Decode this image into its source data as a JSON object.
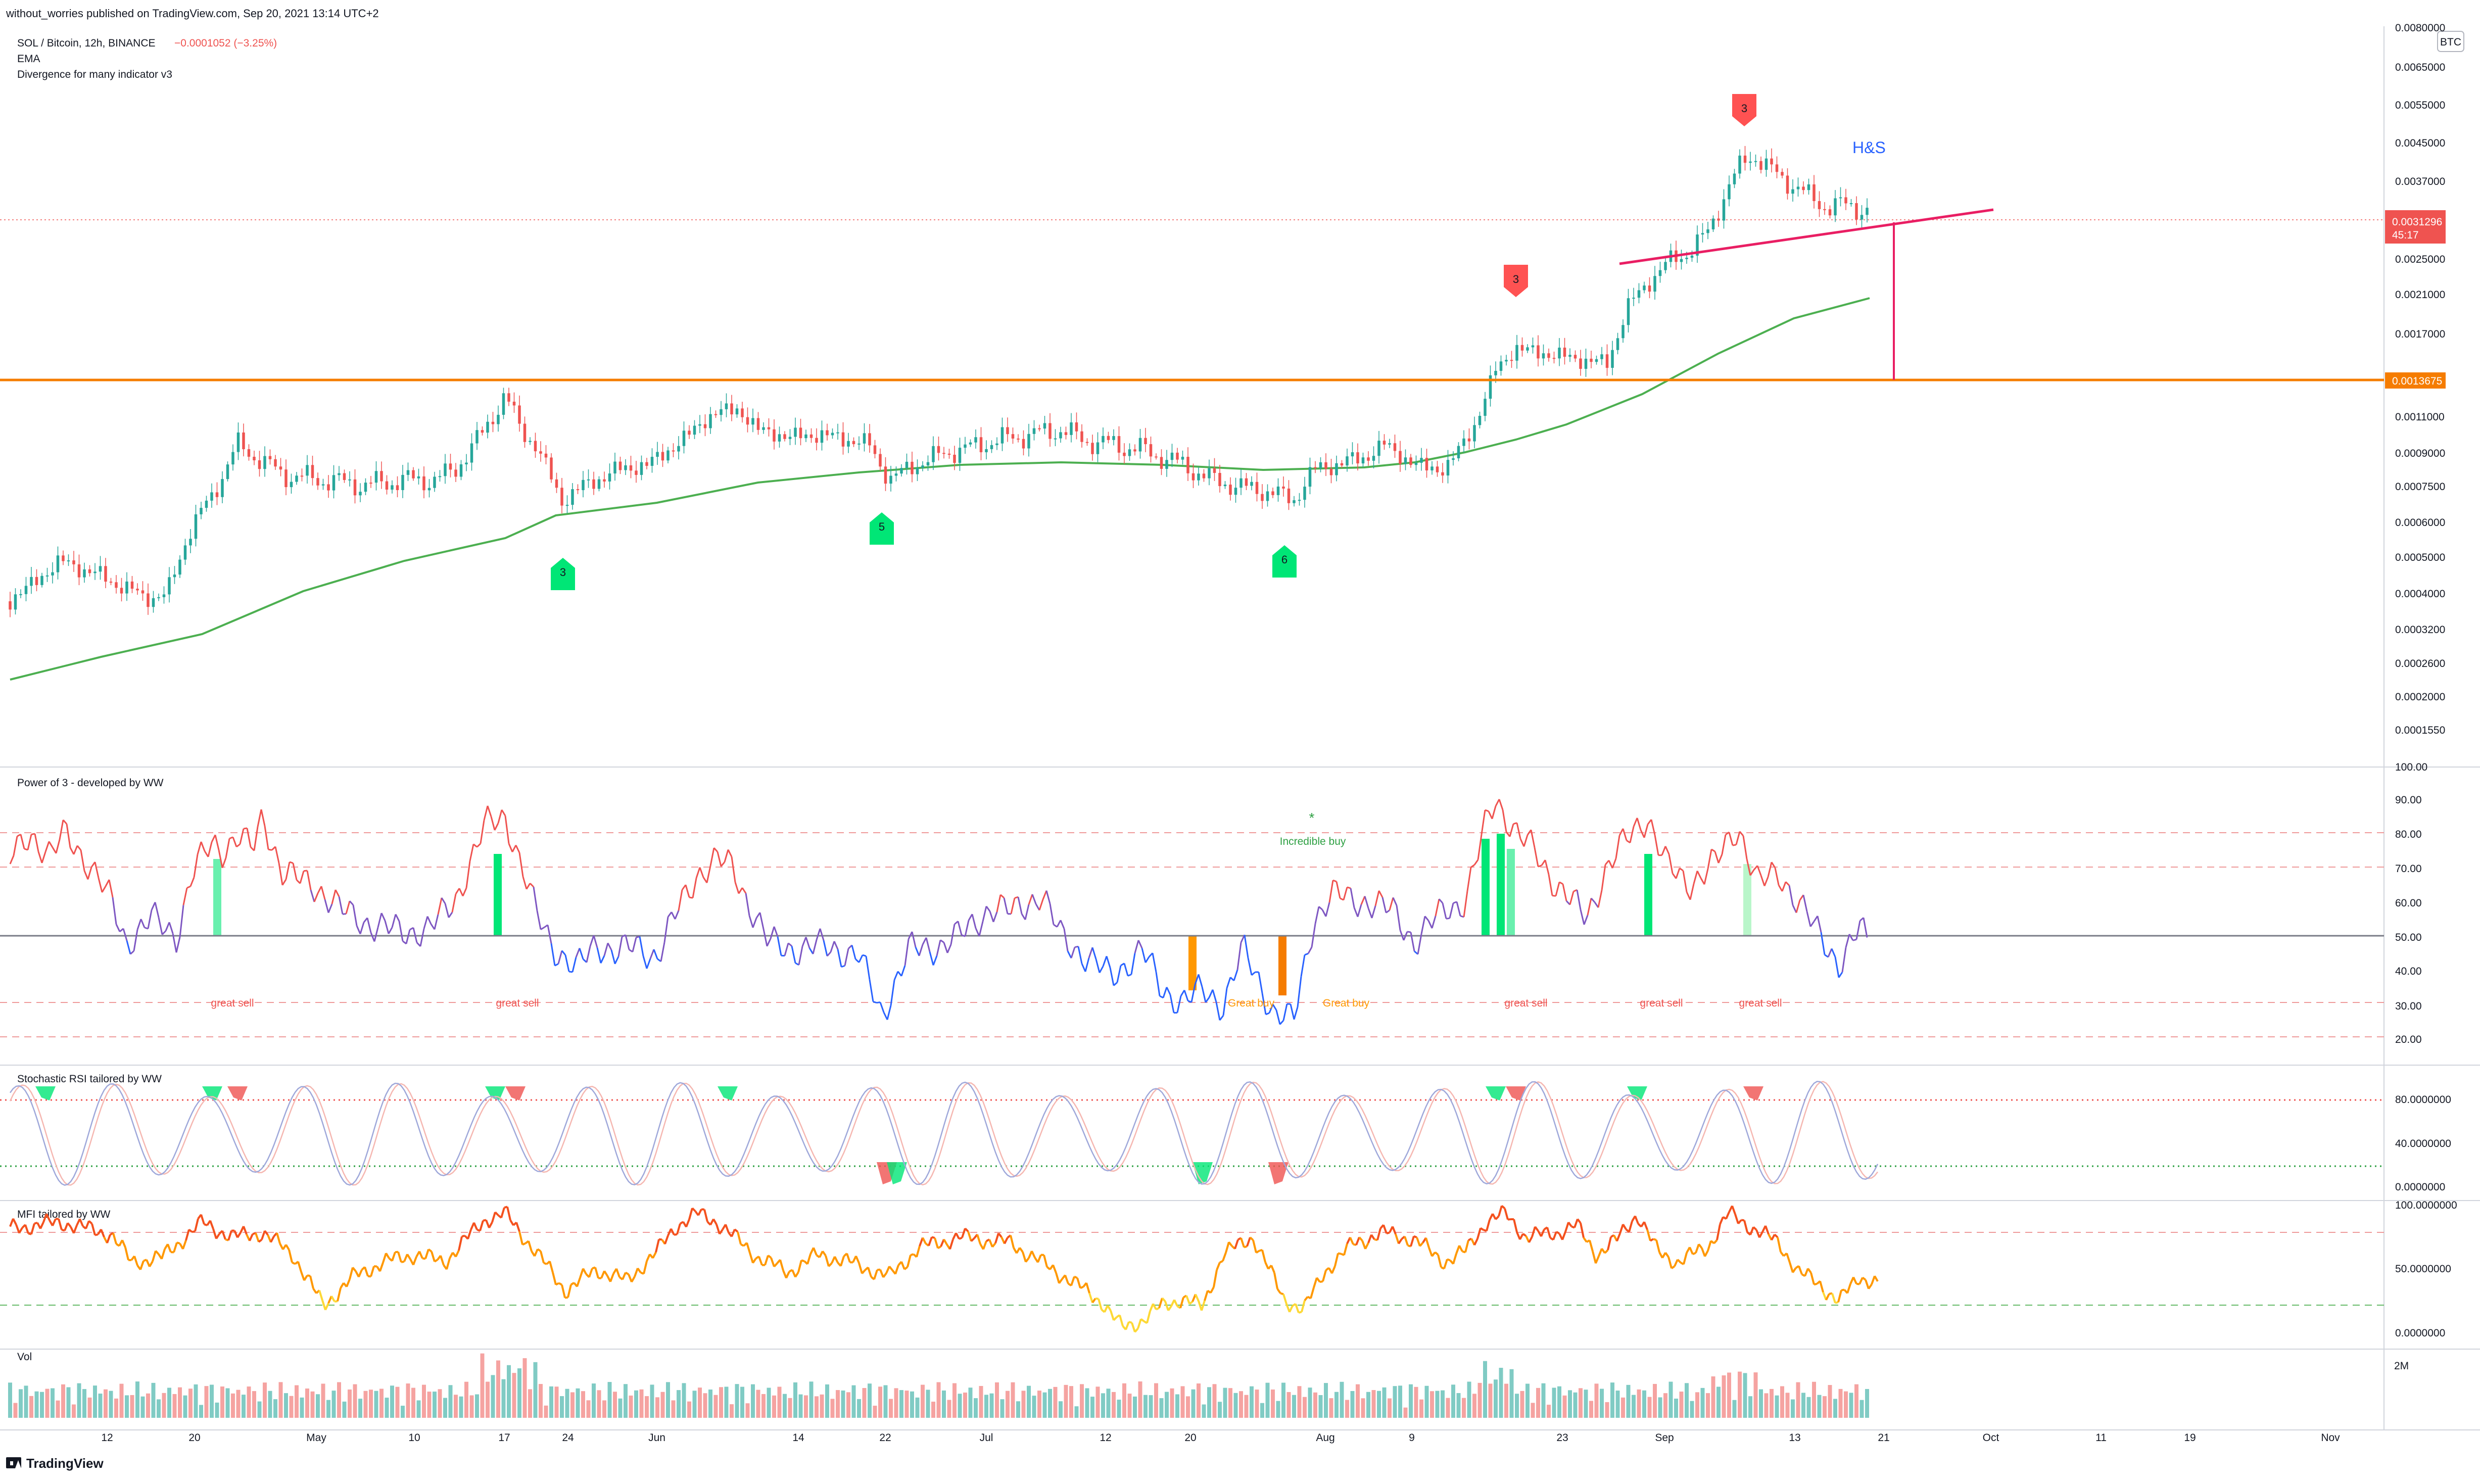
{
  "header": {
    "publisher": "without_worries published on TradingView.com, Sep 20, 2021 13:14 UTC+2"
  },
  "legend": {
    "symbol": "SOL / Bitcoin, 12h, BINANCE",
    "change": "−0.0001052 (−3.25%)",
    "ema": "EMA",
    "divergence": "Divergence for many indicator v3"
  },
  "price_scale": {
    "currency": "BTC",
    "ticks": [
      "0.0080000",
      "0.0065000",
      "0.0055000",
      "0.0045000",
      "0.0037000",
      "0.0031296",
      "0.0025000",
      "0.0021000",
      "0.0017000",
      "0.0013675",
      "0.0011000",
      "0.0009000",
      "0.0007500",
      "0.0006000",
      "0.0005000",
      "0.0004000",
      "0.0003200",
      "0.0002600",
      "0.0002000",
      "0.0001550"
    ],
    "last_price": "0.0031296",
    "countdown": "45:17",
    "support_price": "0.0013675"
  },
  "chart_annotations": {
    "pattern_label": "H&S",
    "signals": [
      {
        "text": "3",
        "kind": "buy"
      },
      {
        "text": "5",
        "kind": "buy"
      },
      {
        "text": "6",
        "kind": "buy"
      },
      {
        "text": "3",
        "kind": "sell"
      },
      {
        "text": "3",
        "kind": "sell"
      }
    ]
  },
  "power_of_3": {
    "title": "Power of 3 - developed by WW",
    "ticks": [
      "100.00",
      "90.00",
      "80.00",
      "70.00",
      "60.00",
      "50.00",
      "40.00",
      "30.00",
      "20.00"
    ],
    "star": "*",
    "annotations": [
      {
        "text": "great sell",
        "color": "#ef5350"
      },
      {
        "text": "great sell",
        "color": "#ef5350"
      },
      {
        "text": "Great buy",
        "color": "#ff9800"
      },
      {
        "text": "Great buy",
        "color": "#ff9800"
      },
      {
        "text": "Incredible buy",
        "color": "#2ea043"
      },
      {
        "text": "great sell",
        "color": "#ef5350"
      },
      {
        "text": "great sell",
        "color": "#ef5350"
      },
      {
        "text": "great sell",
        "color": "#ef5350"
      }
    ]
  },
  "stoch_rsi": {
    "title": "Stochastic RSI tailored by WW",
    "ticks": [
      "80.0000000",
      "40.0000000",
      "0.0000000"
    ]
  },
  "mfi": {
    "title": "MFI tailored by WW",
    "ticks": [
      "100.0000000",
      "50.0000000",
      "0.0000000"
    ]
  },
  "volume": {
    "title": "Vol",
    "ticks": [
      "2M"
    ]
  },
  "time_axis": {
    "labels": [
      "12",
      "20",
      "May",
      "10",
      "17",
      "24",
      "Jun",
      "14",
      "22",
      "Jul",
      "12",
      "20",
      "Aug",
      "9",
      "23",
      "Sep",
      "13",
      "21",
      "Oct",
      "11",
      "19",
      "Nov"
    ]
  },
  "footer": {
    "brand": "TradingView"
  },
  "colors": {
    "up": "#26a69a",
    "down": "#ef5350",
    "ema": "#4caf50",
    "support": "#f57c00",
    "neckline": "#e91e63",
    "axis_text": "#131722"
  }
}
